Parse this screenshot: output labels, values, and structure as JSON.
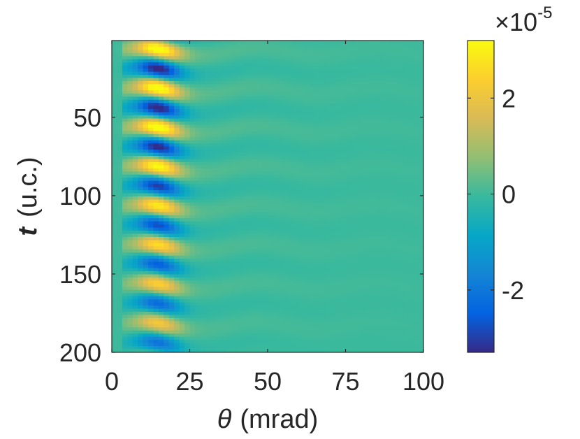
{
  "chart_data": {
    "type": "heatmap",
    "title": "",
    "xlabel_symbol": "θ",
    "xlabel_units": "(mrad)",
    "ylabel_symbol": "t",
    "ylabel_units": "(u.c.)",
    "xlim": [
      0,
      100
    ],
    "ylim": [
      1,
      200
    ],
    "y_reversed": true,
    "x_ticks": [
      0,
      25,
      50,
      75,
      100
    ],
    "x_tick_labels": [
      "0",
      "25",
      "50",
      "75",
      "100"
    ],
    "y_ticks": [
      50,
      100,
      150,
      200
    ],
    "y_tick_labels": [
      "50",
      "100",
      "150",
      "200"
    ],
    "grid": false,
    "colormap": "parula",
    "colormap_stops": [
      "#352a87",
      "#0363e1",
      "#1485d4",
      "#06a7c6",
      "#38b99e",
      "#92bf73",
      "#d9ba56",
      "#fcce2e",
      "#f9fb0e"
    ],
    "clim": [
      -3.3e-05,
      3.2e-05
    ],
    "colorbar": {
      "ticks": [
        2,
        0,
        -2
      ],
      "tick_labels": [
        "2",
        "0",
        "-2"
      ],
      "multiplier_prefix": "×10",
      "multiplier_exponent": "-5"
    },
    "field_description": "Oscillating intensity in theta ≈ 5–30 mrad, period ≈ 25 u.c. in t, decaying in theta; near zero for theta > 40 mrad",
    "field": {
      "theta_center": 15,
      "theta_width": 7,
      "theta_tail_width": 30,
      "t_period": 25,
      "t_phase": 58,
      "peak_amplitude": 3.1e-05,
      "t_decay": 260
    }
  }
}
